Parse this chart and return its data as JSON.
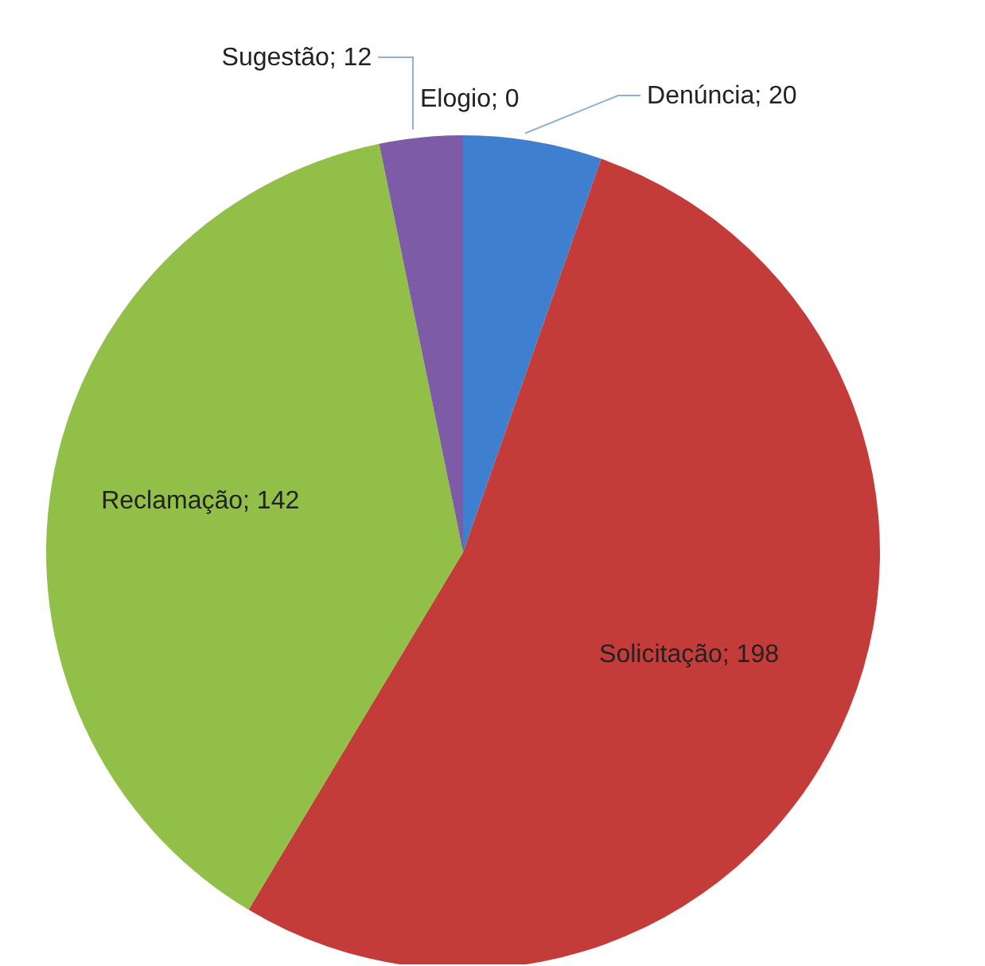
{
  "chart_data": {
    "type": "pie",
    "categories": [
      "Denúncia",
      "Solicitação",
      "Reclamação",
      "Sugestão",
      "Elogio"
    ],
    "values": [
      20,
      198,
      142,
      12,
      0
    ],
    "value_labels": [
      "; 20",
      "; 198",
      "; 142",
      "; 12",
      "; 0"
    ],
    "colors": [
      "#3f7fcf",
      "#c43c3a",
      "#92bf48",
      "#7d5ba6",
      "#4bacc6"
    ],
    "legend": false
  }
}
